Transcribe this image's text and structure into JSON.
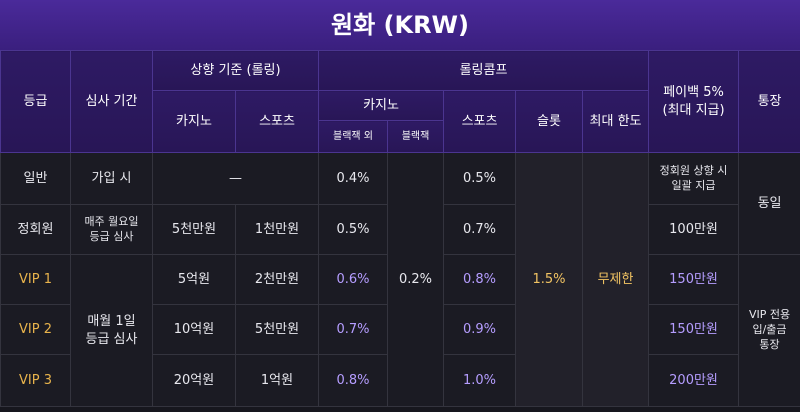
{
  "title": "원화 (KRW)",
  "header": {
    "grade": "등급",
    "review": "심사 기간",
    "upgrade": "상향 기준 (롤링)",
    "upgrade_casino": "카지노",
    "upgrade_sports": "스포츠",
    "comp": "롤링콤프",
    "comp_casino": "카지노",
    "comp_non_bj": "블랙잭 외",
    "comp_bj": "블랙잭",
    "comp_sports": "스포츠",
    "comp_slot": "슬롯",
    "comp_max": "최대 한도",
    "payback": "페이백 5%\n(최대 지급)",
    "account": "통장"
  },
  "rows": [
    [
      "일반",
      "가입 시",
      "—",
      "0.4%",
      "0.2%",
      "0.5%",
      "1.5%",
      "무제한",
      "정회원 상향 시\n일괄 지급",
      "동일"
    ],
    [
      "정회원",
      "매주 월요일\n등급 심사",
      "5천만원",
      "1천만원",
      "0.5%",
      "0.7%",
      "100만원"
    ],
    [
      "VIP 1",
      "매월 1일\n등급 심사",
      "5억원",
      "2천만원",
      "0.6%",
      "0.8%",
      "150만원",
      "VIP 전용\n입/출금\n통장"
    ],
    [
      "VIP 2",
      "10억원",
      "5천만원",
      "0.7%",
      "0.9%",
      "150만원"
    ],
    [
      "VIP 3",
      "20억원",
      "1억원",
      "0.8%",
      "1.0%",
      "200만원"
    ]
  ]
}
